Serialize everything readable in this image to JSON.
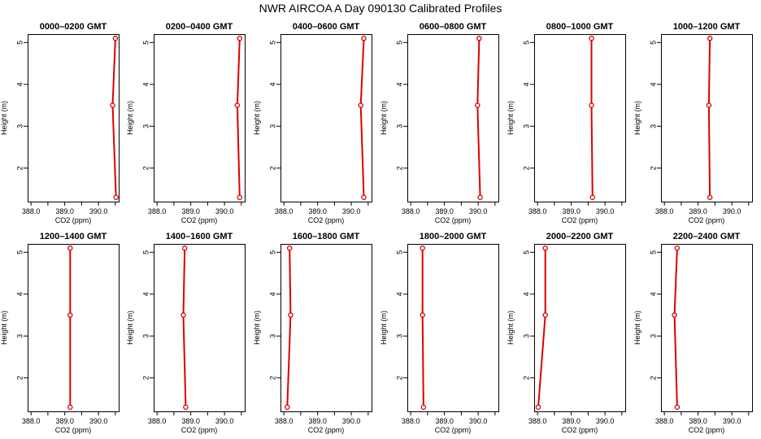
{
  "title": "NWR AIRCOA A  Day 090130  Calibrated Profiles",
  "colors": {
    "series": "#dd0000",
    "axis": "#000000"
  },
  "chart_data": [
    {
      "type": "line",
      "title": "0000–0200 GMT",
      "xlabel": "CO2 (ppm)",
      "ylabel": "Height (m)",
      "xlim": [
        387.9,
        390.6
      ],
      "ylim": [
        1.2,
        5.2
      ],
      "xticks": [
        "388.0",
        "389.0",
        "390.0"
      ],
      "yticks": [
        "2",
        "3",
        "4",
        "5"
      ],
      "points": [
        {
          "x": 390.52,
          "y": 1.3
        },
        {
          "x": 390.42,
          "y": 3.5
        },
        {
          "x": 390.5,
          "y": 5.1
        }
      ]
    },
    {
      "type": "line",
      "title": "0200–0400 GMT",
      "xlabel": "CO2 (ppm)",
      "ylabel": "Height (m)",
      "xlim": [
        387.9,
        390.6
      ],
      "ylim": [
        1.2,
        5.2
      ],
      "xticks": [
        "388.0",
        "389.0",
        "390.0"
      ],
      "yticks": [
        "2",
        "3",
        "4",
        "5"
      ],
      "points": [
        {
          "x": 390.45,
          "y": 1.3
        },
        {
          "x": 390.38,
          "y": 3.5
        },
        {
          "x": 390.45,
          "y": 5.1
        }
      ]
    },
    {
      "type": "line",
      "title": "0400–0600 GMT",
      "xlabel": "CO2 (ppm)",
      "ylabel": "Height (m)",
      "xlim": [
        387.9,
        390.6
      ],
      "ylim": [
        1.2,
        5.2
      ],
      "xticks": [
        "388.0",
        "389.0",
        "390.0"
      ],
      "yticks": [
        "2",
        "3",
        "4",
        "5"
      ],
      "points": [
        {
          "x": 390.37,
          "y": 1.3
        },
        {
          "x": 390.28,
          "y": 3.5
        },
        {
          "x": 390.37,
          "y": 5.1
        }
      ]
    },
    {
      "type": "line",
      "title": "0600–0800 GMT",
      "xlabel": "CO2 (ppm)",
      "ylabel": "Height (m)",
      "xlim": [
        387.9,
        390.6
      ],
      "ylim": [
        1.2,
        5.2
      ],
      "xticks": [
        "388.0",
        "389.0",
        "390.0"
      ],
      "yticks": [
        "2",
        "3",
        "4",
        "5"
      ],
      "points": [
        {
          "x": 390.06,
          "y": 1.3
        },
        {
          "x": 389.98,
          "y": 3.5
        },
        {
          "x": 390.03,
          "y": 5.1
        }
      ]
    },
    {
      "type": "line",
      "title": "0800–1000 GMT",
      "xlabel": "CO2 (ppm)",
      "ylabel": "Height (m)",
      "xlim": [
        387.9,
        390.6
      ],
      "ylim": [
        1.2,
        5.2
      ],
      "xticks": [
        "388.0",
        "389.0",
        "390.0"
      ],
      "yticks": [
        "2",
        "3",
        "4",
        "5"
      ],
      "points": [
        {
          "x": 389.63,
          "y": 1.3
        },
        {
          "x": 389.6,
          "y": 3.5
        },
        {
          "x": 389.6,
          "y": 5.1
        }
      ]
    },
    {
      "type": "line",
      "title": "1000–1200 GMT",
      "xlabel": "CO2 (ppm)",
      "ylabel": "Height (m)",
      "xlim": [
        387.9,
        390.6
      ],
      "ylim": [
        1.2,
        5.2
      ],
      "xticks": [
        "388.0",
        "389.0",
        "390.0"
      ],
      "yticks": [
        "2",
        "3",
        "4",
        "5"
      ],
      "points": [
        {
          "x": 389.35,
          "y": 1.3
        },
        {
          "x": 389.32,
          "y": 3.5
        },
        {
          "x": 389.35,
          "y": 5.1
        }
      ]
    },
    {
      "type": "line",
      "title": "1200–1400 GMT",
      "xlabel": "CO2 (ppm)",
      "ylabel": "Height (m)",
      "xlim": [
        387.9,
        390.6
      ],
      "ylim": [
        1.2,
        5.2
      ],
      "xticks": [
        "388.0",
        "389.0",
        "390.0"
      ],
      "yticks": [
        "2",
        "3",
        "4",
        "5"
      ],
      "points": [
        {
          "x": 389.16,
          "y": 1.3
        },
        {
          "x": 389.16,
          "y": 3.5
        },
        {
          "x": 389.16,
          "y": 5.1
        }
      ]
    },
    {
      "type": "line",
      "title": "1400–1600 GMT",
      "xlabel": "CO2 (ppm)",
      "ylabel": "Height (m)",
      "xlim": [
        387.9,
        390.6
      ],
      "ylim": [
        1.2,
        5.2
      ],
      "xticks": [
        "388.0",
        "389.0",
        "390.0"
      ],
      "yticks": [
        "2",
        "3",
        "4",
        "5"
      ],
      "points": [
        {
          "x": 388.85,
          "y": 1.3
        },
        {
          "x": 388.78,
          "y": 3.5
        },
        {
          "x": 388.82,
          "y": 5.1
        }
      ]
    },
    {
      "type": "line",
      "title": "1600–1800 GMT",
      "xlabel": "CO2 (ppm)",
      "ylabel": "Height (m)",
      "xlim": [
        387.9,
        390.6
      ],
      "ylim": [
        1.2,
        5.2
      ],
      "xticks": [
        "388.0",
        "389.0",
        "390.0"
      ],
      "yticks": [
        "2",
        "3",
        "4",
        "5"
      ],
      "points": [
        {
          "x": 388.1,
          "y": 1.3
        },
        {
          "x": 388.2,
          "y": 3.5
        },
        {
          "x": 388.17,
          "y": 5.1
        }
      ]
    },
    {
      "type": "line",
      "title": "1800–2000 GMT",
      "xlabel": "CO2 (ppm)",
      "ylabel": "Height (m)",
      "xlim": [
        387.9,
        390.6
      ],
      "ylim": [
        1.2,
        5.2
      ],
      "xticks": [
        "388.0",
        "389.0",
        "390.0"
      ],
      "yticks": [
        "2",
        "3",
        "4",
        "5"
      ],
      "points": [
        {
          "x": 388.38,
          "y": 1.3
        },
        {
          "x": 388.35,
          "y": 3.5
        },
        {
          "x": 388.35,
          "y": 5.1
        }
      ]
    },
    {
      "type": "line",
      "title": "2000–2200 GMT",
      "xlabel": "CO2 (ppm)",
      "ylabel": "Height (m)",
      "xlim": [
        387.9,
        390.6
      ],
      "ylim": [
        1.2,
        5.2
      ],
      "xticks": [
        "388.0",
        "389.0",
        "390.0"
      ],
      "yticks": [
        "2",
        "3",
        "4",
        "5"
      ],
      "points": [
        {
          "x": 388.02,
          "y": 1.3
        },
        {
          "x": 388.23,
          "y": 3.5
        },
        {
          "x": 388.23,
          "y": 5.1
        }
      ]
    },
    {
      "type": "line",
      "title": "2200–2400 GMT",
      "xlabel": "CO2 (ppm)",
      "ylabel": "Height (m)",
      "xlim": [
        387.9,
        390.6
      ],
      "ylim": [
        1.2,
        5.2
      ],
      "xticks": [
        "388.0",
        "389.0",
        "390.0"
      ],
      "yticks": [
        "2",
        "3",
        "4",
        "5"
      ],
      "points": [
        {
          "x": 388.38,
          "y": 1.3
        },
        {
          "x": 388.3,
          "y": 3.5
        },
        {
          "x": 388.38,
          "y": 5.1
        }
      ]
    }
  ]
}
